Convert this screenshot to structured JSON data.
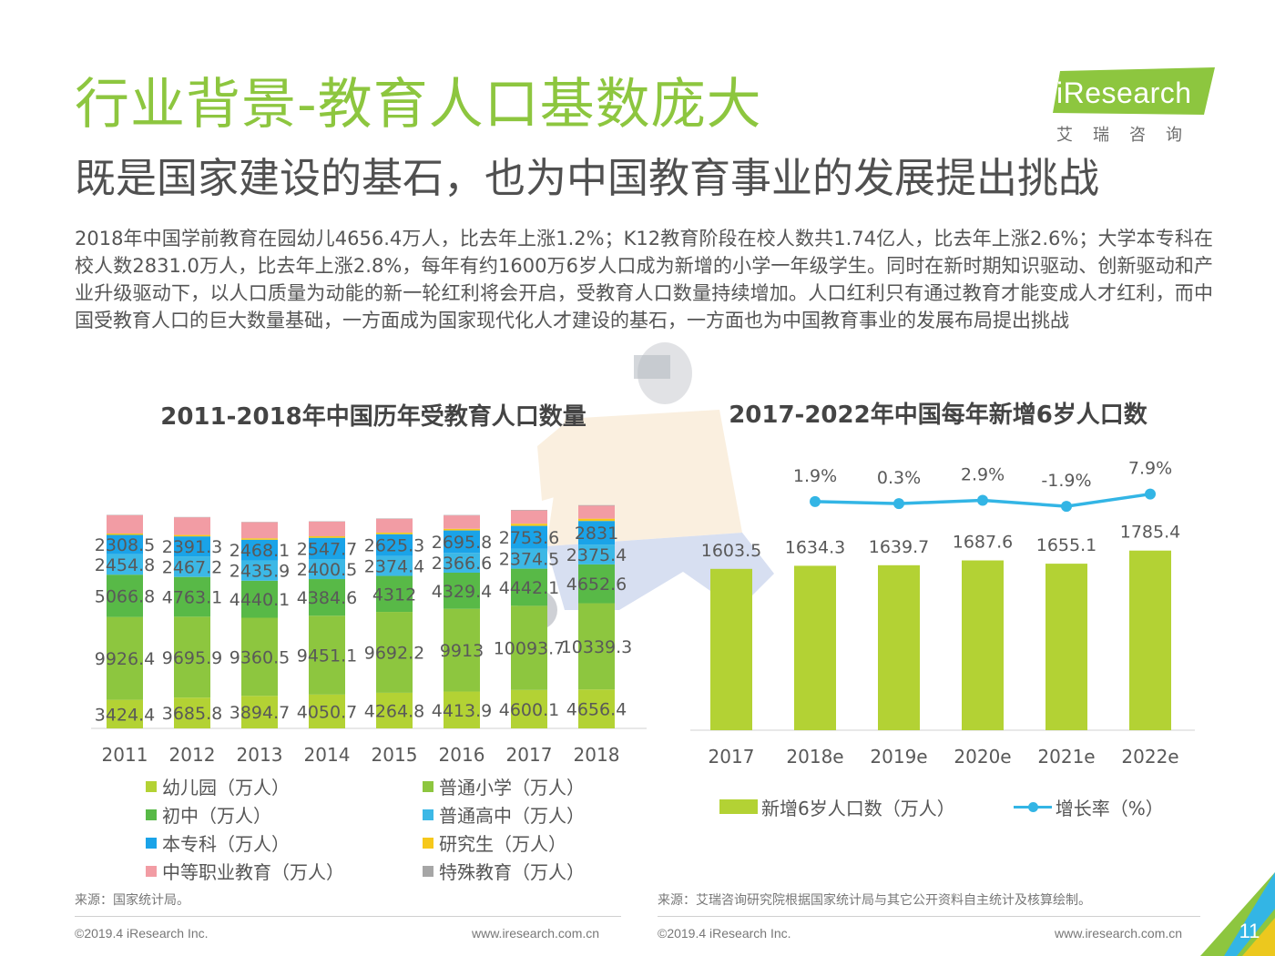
{
  "header": {
    "title": "行业背景-教育人口基数庞大",
    "subtitle": "既是国家建设的基石，也为中国教育事业的发展提出挑战"
  },
  "logo": {
    "wordmark": "iResearch",
    "cn": "艾瑞咨询",
    "color": "#8dc63f"
  },
  "body_text": "2018年中国学前教育在园幼儿4656.4万人，比去年上涨1.2%；K12教育阶段在校人数共1.74亿人，比去年上涨2.6%；大学本专科在校人数2831.0万人，比去年上涨2.8%，每年有约1600万6岁人口成为新增的小学一年级学生。同时在新时期知识驱动、创新驱动和产业升级驱动下，以人口质量为动能的新一轮红利将会开启，受教育人口数量持续增加。人口红利只有通过教育才能变成人才红利，而中国受教育人口的巨大数量基础，一方面成为国家现代化人才建设的基石，一方面也为中国教育事业的发展布局提出挑战",
  "chart_data": [
    {
      "type": "bar",
      "stacked": true,
      "title": "2011-2018年中国历年受教育人口数量",
      "categories": [
        "2011",
        "2012",
        "2013",
        "2014",
        "2015",
        "2016",
        "2017",
        "2018"
      ],
      "ylim": [
        0,
        30000
      ],
      "grid": false,
      "legend_position": "bottom",
      "series": [
        {
          "name": "幼儿园（万人）",
          "color": "#b3d234",
          "values": [
            3424.4,
            3685.8,
            3894.7,
            4050.7,
            4264.8,
            4413.9,
            4600.1,
            4656.4
          ],
          "labels": [
            "3424.4",
            "3685.8",
            "3894.7",
            "4050.7",
            "4264.8",
            "4413.9",
            "4600.1",
            "4656.4"
          ]
        },
        {
          "name": "普通小学（万人）",
          "color": "#8dc63f",
          "values": [
            9926.4,
            9695.9,
            9360.5,
            9451.1,
            9692.2,
            9913,
            10093.7,
            10339.3
          ],
          "labels": [
            "9926.4",
            "9695.9",
            "9360.5",
            "9451.1",
            "9692.2",
            "9913",
            "10093.7",
            "10339.3"
          ]
        },
        {
          "name": "初中（万人）",
          "color": "#58b947",
          "values": [
            5066.8,
            4763.1,
            4440.1,
            4384.6,
            4312,
            4329.4,
            4442.1,
            4652.6
          ],
          "labels": [
            "5066.8",
            "4763.1",
            "4440.1",
            "4384.6",
            "4312",
            "4329.4",
            "4442.1",
            "4652.6"
          ]
        },
        {
          "name": "普通高中（万人）",
          "color": "#3cb8e6",
          "values": [
            2454.8,
            2467.2,
            2435.9,
            2400.5,
            2374.4,
            2366.6,
            2374.5,
            2375.4
          ],
          "labels": [
            "2454.8",
            "2467.2",
            "2435.9",
            "2400.5",
            "2374.4",
            "2366.6",
            "2374.5",
            "2375.4"
          ]
        },
        {
          "name": "本专科（万人）",
          "color": "#1aa3e8",
          "values": [
            2308.5,
            2391.3,
            2468.1,
            2547.7,
            2625.3,
            2695.8,
            2753.6,
            2831
          ],
          "labels": [
            "2308.5",
            "2391.3",
            "2468.1",
            "2547.7",
            "2625.3",
            "2695.8",
            "2753.6",
            "2831"
          ]
        },
        {
          "name": "研究生（万人）",
          "color": "#f6c81b",
          "values": [
            164.6,
            172,
            179.4,
            184.8,
            191.1,
            198.1,
            263.9,
            273.1
          ],
          "labels": []
        },
        {
          "name": "中等职业教育（万人）",
          "color": "#f29ca4",
          "values": [
            2205.3,
            2113.7,
            1923,
            1755.3,
            1656.7,
            1599,
            1592.5,
            1555.3
          ],
          "labels": []
        },
        {
          "name": "特殊教育（万人）",
          "color": "#a6a6a6",
          "values": [
            39.9,
            37.9,
            36.8,
            39.5,
            44.2,
            49.2,
            57.9,
            66.6
          ],
          "labels": []
        }
      ]
    },
    {
      "type": "bar+line",
      "title": "2017-2022年中国每年新增6岁人口数",
      "categories": [
        "2017",
        "2018e",
        "2019e",
        "2020e",
        "2021e",
        "2022e"
      ],
      "grid": false,
      "legend_position": "bottom",
      "bar_series": {
        "name": "新增6岁人口数（万人）",
        "color": "#b3d234",
        "values": [
          1603.5,
          1634.3,
          1639.7,
          1687.6,
          1655.1,
          1785.4
        ],
        "labels": [
          "1603.5",
          "1634.3",
          "1639.7",
          "1687.6",
          "1655.1",
          "1785.4"
        ]
      },
      "line_series": {
        "name": "增长率（%）",
        "color": "#33b5e5",
        "x": [
          "2018e",
          "2019e",
          "2020e",
          "2021e",
          "2022e"
        ],
        "values": [
          1.9,
          0.3,
          2.9,
          -1.9,
          7.9
        ],
        "labels": [
          "1.9%",
          "0.3%",
          "2.9%",
          "-1.9%",
          "7.9%"
        ]
      },
      "bar_ylim": [
        0,
        2000
      ],
      "line_ylim": [
        -20,
        10
      ]
    }
  ],
  "sources": {
    "left": "来源：国家统计局。",
    "right": "来源：艾瑞咨询研究院根据国家统计局与其它公开资料自主统计及核算绘制。"
  },
  "footer": {
    "copyright_left": "©2019.4 iResearch Inc.",
    "url_left": "www.iresearch.com.cn",
    "copyright_right": "©2019.4 iResearch Inc.",
    "url_right": "www.iresearch.com.cn",
    "page_number": "11"
  }
}
